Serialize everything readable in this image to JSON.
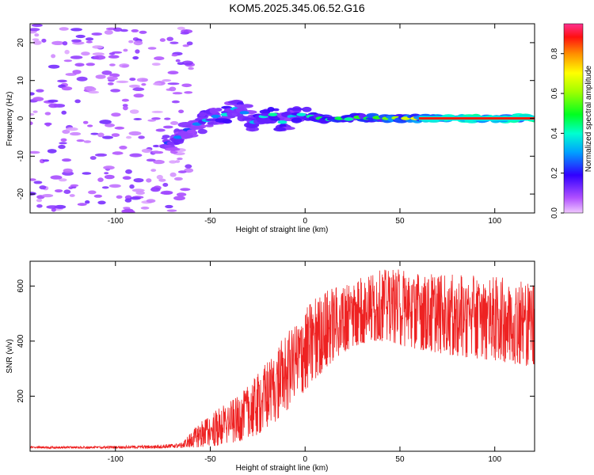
{
  "title": "KOM5.2025.345.06.52.G16",
  "chart_data": [
    {
      "type": "heatmap",
      "title": "KOM5.2025.345.06.52.G16",
      "xlabel": "Height of straight line (km)",
      "ylabel": "Frequency (Hz)",
      "xlim": [
        -145,
        121
      ],
      "ylim": [
        -25,
        25
      ],
      "xticks": [
        -100,
        -50,
        0,
        50,
        100
      ],
      "yticks": [
        -20,
        -10,
        0,
        10,
        20
      ],
      "colorbar": {
        "label": "Normalized spectral amplitude",
        "range": [
          0,
          0.95
        ],
        "ticks": [
          0.0,
          0.2,
          0.4,
          0.6,
          0.8
        ]
      },
      "ridge": [
        {
          "x": -72,
          "f": -6.5,
          "a": 0.25
        },
        {
          "x": -67,
          "f": -5.0,
          "a": 0.3
        },
        {
          "x": -62,
          "f": -3.0,
          "a": 0.25
        },
        {
          "x": -57,
          "f": -1.5,
          "a": 0.3
        },
        {
          "x": -52,
          "f": -0.5,
          "a": 0.35
        },
        {
          "x": -47,
          "f": 0.5,
          "a": 0.3
        },
        {
          "x": -42,
          "f": 1.0,
          "a": 0.4
        },
        {
          "x": -37,
          "f": 2.5,
          "a": 0.35
        },
        {
          "x": -32,
          "f": 1.5,
          "a": 0.3
        },
        {
          "x": -27,
          "f": -1.0,
          "a": 0.35
        },
        {
          "x": -22,
          "f": 0.5,
          "a": 0.4
        },
        {
          "x": -17,
          "f": 1.0,
          "a": 0.45
        },
        {
          "x": -12,
          "f": -1.0,
          "a": 0.4
        },
        {
          "x": -7,
          "f": 0.5,
          "a": 0.35
        },
        {
          "x": -2,
          "f": 1.0,
          "a": 0.4
        },
        {
          "x": 3,
          "f": 0.5,
          "a": 0.45
        },
        {
          "x": 8,
          "f": 0.0,
          "a": 0.5
        },
        {
          "x": 13,
          "f": -0.3,
          "a": 0.45
        },
        {
          "x": 18,
          "f": 0.0,
          "a": 0.5
        },
        {
          "x": 23,
          "f": -0.2,
          "a": 0.45
        },
        {
          "x": 28,
          "f": 0.3,
          "a": 0.55
        },
        {
          "x": 33,
          "f": 0.0,
          "a": 0.5
        },
        {
          "x": 38,
          "f": 0.2,
          "a": 0.55
        },
        {
          "x": 43,
          "f": 0.0,
          "a": 0.6
        },
        {
          "x": 48,
          "f": 0.1,
          "a": 0.65
        },
        {
          "x": 53,
          "f": 0.0,
          "a": 0.7
        },
        {
          "x": 58,
          "f": 0.0,
          "a": 0.75
        },
        {
          "x": 63,
          "f": 0.0,
          "a": 0.8
        },
        {
          "x": 68,
          "f": 0.0,
          "a": 0.85
        },
        {
          "x": 73,
          "f": 0.0,
          "a": 0.9
        },
        {
          "x": 78,
          "f": 0.0,
          "a": 0.92
        },
        {
          "x": 83,
          "f": 0.0,
          "a": 0.93
        },
        {
          "x": 88,
          "f": 0.0,
          "a": 0.95
        },
        {
          "x": 93,
          "f": 0.0,
          "a": 0.95
        },
        {
          "x": 98,
          "f": 0.0,
          "a": 0.95
        },
        {
          "x": 103,
          "f": 0.0,
          "a": 0.95
        },
        {
          "x": 108,
          "f": 0.0,
          "a": 0.95
        },
        {
          "x": 113,
          "f": 0.0,
          "a": 0.95
        },
        {
          "x": 118,
          "f": 0.0,
          "a": 0.95
        }
      ]
    },
    {
      "type": "line",
      "xlabel": "Height of straight line (km)",
      "ylabel": "SNR (v/v)",
      "xlim": [
        -145,
        121
      ],
      "ylim": [
        0,
        690
      ],
      "xticks": [
        -100,
        -50,
        0,
        50,
        100
      ],
      "yticks": [
        200,
        400,
        600
      ],
      "color": "#ee2222",
      "envelope": {
        "x": [
          -145,
          -110,
          -80,
          -65,
          -55,
          -45,
          -35,
          -25,
          -15,
          -5,
          5,
          15,
          25,
          35,
          45,
          50,
          60,
          80,
          100,
          121
        ],
        "low": [
          10,
          10,
          10,
          12,
          15,
          20,
          35,
          60,
          110,
          180,
          260,
          330,
          380,
          400,
          400,
          385,
          370,
          345,
          330,
          305
        ],
        "high": [
          18,
          18,
          22,
          30,
          110,
          160,
          200,
          280,
          380,
          470,
          560,
          600,
          625,
          650,
          665,
          665,
          650,
          640,
          635,
          620
        ]
      }
    }
  ]
}
